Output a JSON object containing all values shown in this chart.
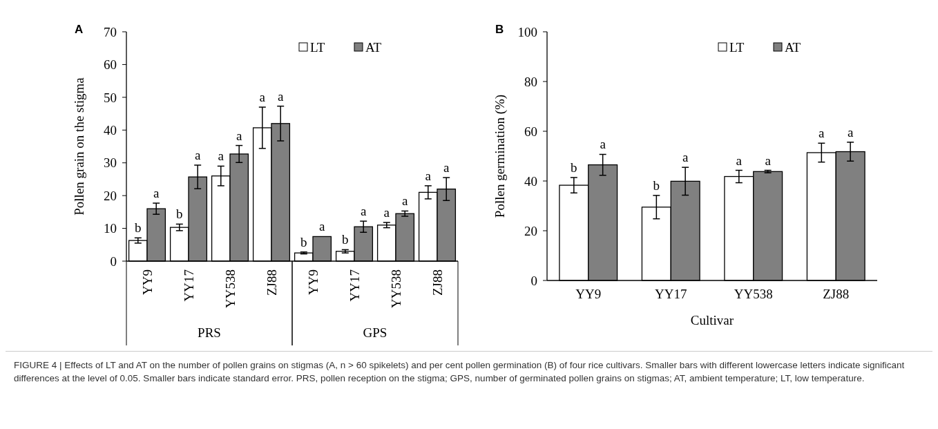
{
  "chart_data": [
    {
      "type": "bar",
      "title": "A",
      "ylabel": "Pollen grain on the stigma",
      "categories": [
        "YY9",
        "YY17",
        "YY538",
        "ZJ88",
        "YY9",
        "YY17",
        "YY538",
        "ZJ88"
      ],
      "ylim": [
        0,
        70
      ],
      "yticks": [
        0,
        10,
        20,
        30,
        40,
        50,
        60,
        70
      ],
      "legend": "top right",
      "annotations": [
        "PRS",
        "GPS"
      ],
      "series": [
        {
          "name": "LT",
          "color": "#ffffff",
          "values": [
            6.3,
            10.3,
            26,
            40.7,
            2.5,
            3,
            11,
            21
          ],
          "errors": [
            0.8,
            1,
            3,
            6.3,
            0.3,
            0.5,
            0.8,
            2
          ],
          "value_labels": [
            "b",
            "b",
            "a",
            "a",
            "b",
            "b",
            "a",
            "a"
          ]
        },
        {
          "name": "AT",
          "color": "#808080",
          "values": [
            16,
            25.7,
            32.7,
            42,
            7.5,
            10.5,
            14.5,
            22
          ],
          "errors": [
            1.7,
            3.6,
            2.6,
            5.3,
            null,
            1.7,
            0.8,
            3.5
          ],
          "value_labels": [
            "a",
            "a",
            "a",
            "a",
            "a",
            "a",
            "a",
            "a"
          ]
        }
      ]
    },
    {
      "type": "bar",
      "title": "B",
      "ylabel": "Pollen germination (%)",
      "xlabel": "Cultivar",
      "categories": [
        "YY9",
        "YY17",
        "YY538",
        "ZJ88"
      ],
      "ylim": [
        0,
        100
      ],
      "yticks": [
        0,
        20,
        40,
        60,
        80,
        100
      ],
      "legend": "top right",
      "annotations": [
        "FIGURE 4 | Effects of LT and AT on the number of pollen grains on stigmas (A, n > 60 spikelets) and per cent pollen germination (B) of four rice cultivars. Smaller bars with different lowercase letters indicate significant differences at the level of 0.05. Smaller bars indicate standard error. PRS, pollen reception on the stigma; GPS, number of germinated pollen grains on stigmas; AT, ambient temperature; LT, low temperature."
      ],
      "series": [
        {
          "name": "LT",
          "color": "#ffffff",
          "values": [
            38.3,
            29.5,
            41.8,
            51.4
          ],
          "errors": [
            3.1,
            4.7,
            2.5,
            3.8
          ],
          "value_labels": [
            "b",
            "b",
            "a",
            "a"
          ]
        },
        {
          "name": "AT",
          "color": "#808080",
          "values": [
            46.5,
            39.9,
            43.8,
            51.8
          ],
          "errors": [
            4.2,
            5.6,
            0.5,
            3.8
          ],
          "value_labels": [
            "a",
            "a",
            "a",
            "a"
          ]
        }
      ]
    }
  ]
}
